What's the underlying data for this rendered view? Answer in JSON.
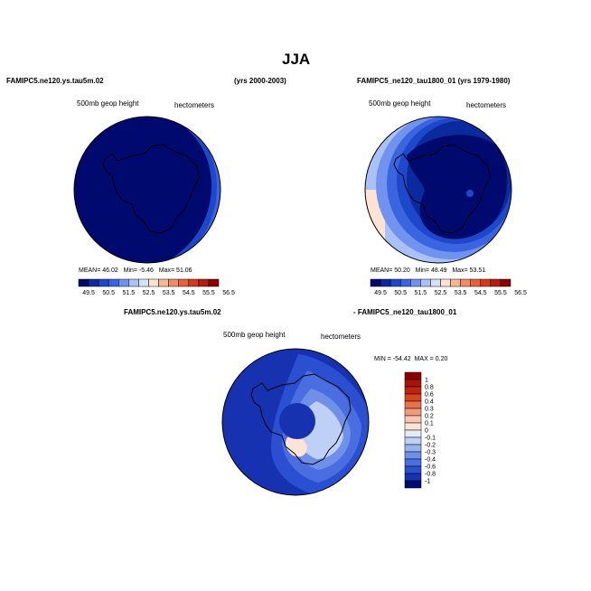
{
  "page": {
    "title": "JJA",
    "panel1_case": "FAMIPC5.ne120.ys.tau5m.02",
    "panel1_years": "(yrs 2000-2003)",
    "panel2_case": "FAMIPC5_ne120_tau1800_01 (yrs 1979-1980)",
    "diff_case_a": "FAMIPC5.ne120.ys.tau5m.02",
    "diff_case_b": "- FAMIPC5_ne120_tau1800_01",
    "var_label": "500mb geop height",
    "units_label": "hectometers"
  },
  "chart_data": [
    {
      "type": "heatmap",
      "projection": "polar-stereographic (south pole)",
      "title": "FAMIPC5.ne120.ys.tau5m.02 (yrs 2000-2003)",
      "variable": "500mb geop height",
      "units": "hectometers",
      "stats": {
        "mean_label": "MEAN=",
        "mean": "46.02",
        "min_label": "Min=",
        "min": "-5.46",
        "max_label": "Max=",
        "max": "51.06"
      },
      "colorbar_ticks": [
        "49.5",
        "50.5",
        "51.5",
        "52.5",
        "53.5",
        "54.5",
        "55.5",
        "56.5"
      ]
    },
    {
      "type": "heatmap",
      "projection": "polar-stereographic (south pole)",
      "title": "FAMIPC5_ne120_tau1800_01 (yrs 1979-1980)",
      "variable": "500mb geop height",
      "units": "hectometers",
      "stats": {
        "mean_label": "MEAN=",
        "mean": "50.20",
        "min_label": "Min=",
        "min": "48.49",
        "max_label": "Max=",
        "max": "53.51"
      },
      "colorbar_ticks": [
        "49.5",
        "50.5",
        "51.5",
        "52.5",
        "53.5",
        "54.5",
        "55.5",
        "56.5"
      ]
    },
    {
      "type": "heatmap",
      "projection": "polar-stereographic (south pole)",
      "title": "FAMIPC5.ne120.ys.tau5m.02 - FAMIPC5_ne120_tau1800_01",
      "variable": "500mb geop height",
      "units": "hectometers",
      "stats": {
        "min_label": "MIN =",
        "min": "-54.42",
        "max_label": "MAX =",
        "max": "0.20"
      },
      "colorbar_ticks": [
        "1",
        "0.8",
        "0.6",
        "0.4",
        "0.3",
        "0.2",
        "0.1",
        "0",
        "-0.1",
        "-0.2",
        "-0.3",
        "-0.4",
        "-0.6",
        "-0.8",
        "-1"
      ]
    }
  ],
  "colors": {
    "horizontal_scale": [
      "#000a6e",
      "#0a2a9e",
      "#1e48cc",
      "#3a64e0",
      "#6f93ee",
      "#a9c1f6",
      "#d6e2fa",
      "#fde3d4",
      "#f8b895",
      "#f08c68",
      "#e4603e",
      "#d23a1e",
      "#b41e0e",
      "#8c0000"
    ],
    "vertical_scale": [
      "#8c0000",
      "#a81208",
      "#c02410",
      "#d8441e",
      "#ea7050",
      "#f49a7c",
      "#fac6b0",
      "#fbe4d6",
      "#e4ecfb",
      "#bfd0f6",
      "#98b3f0",
      "#6f90e8",
      "#4a6ee0",
      "#2a4fd0",
      "#1632b0",
      "#000c70"
    ],
    "coast": "#000000",
    "background": "#ffffff"
  }
}
